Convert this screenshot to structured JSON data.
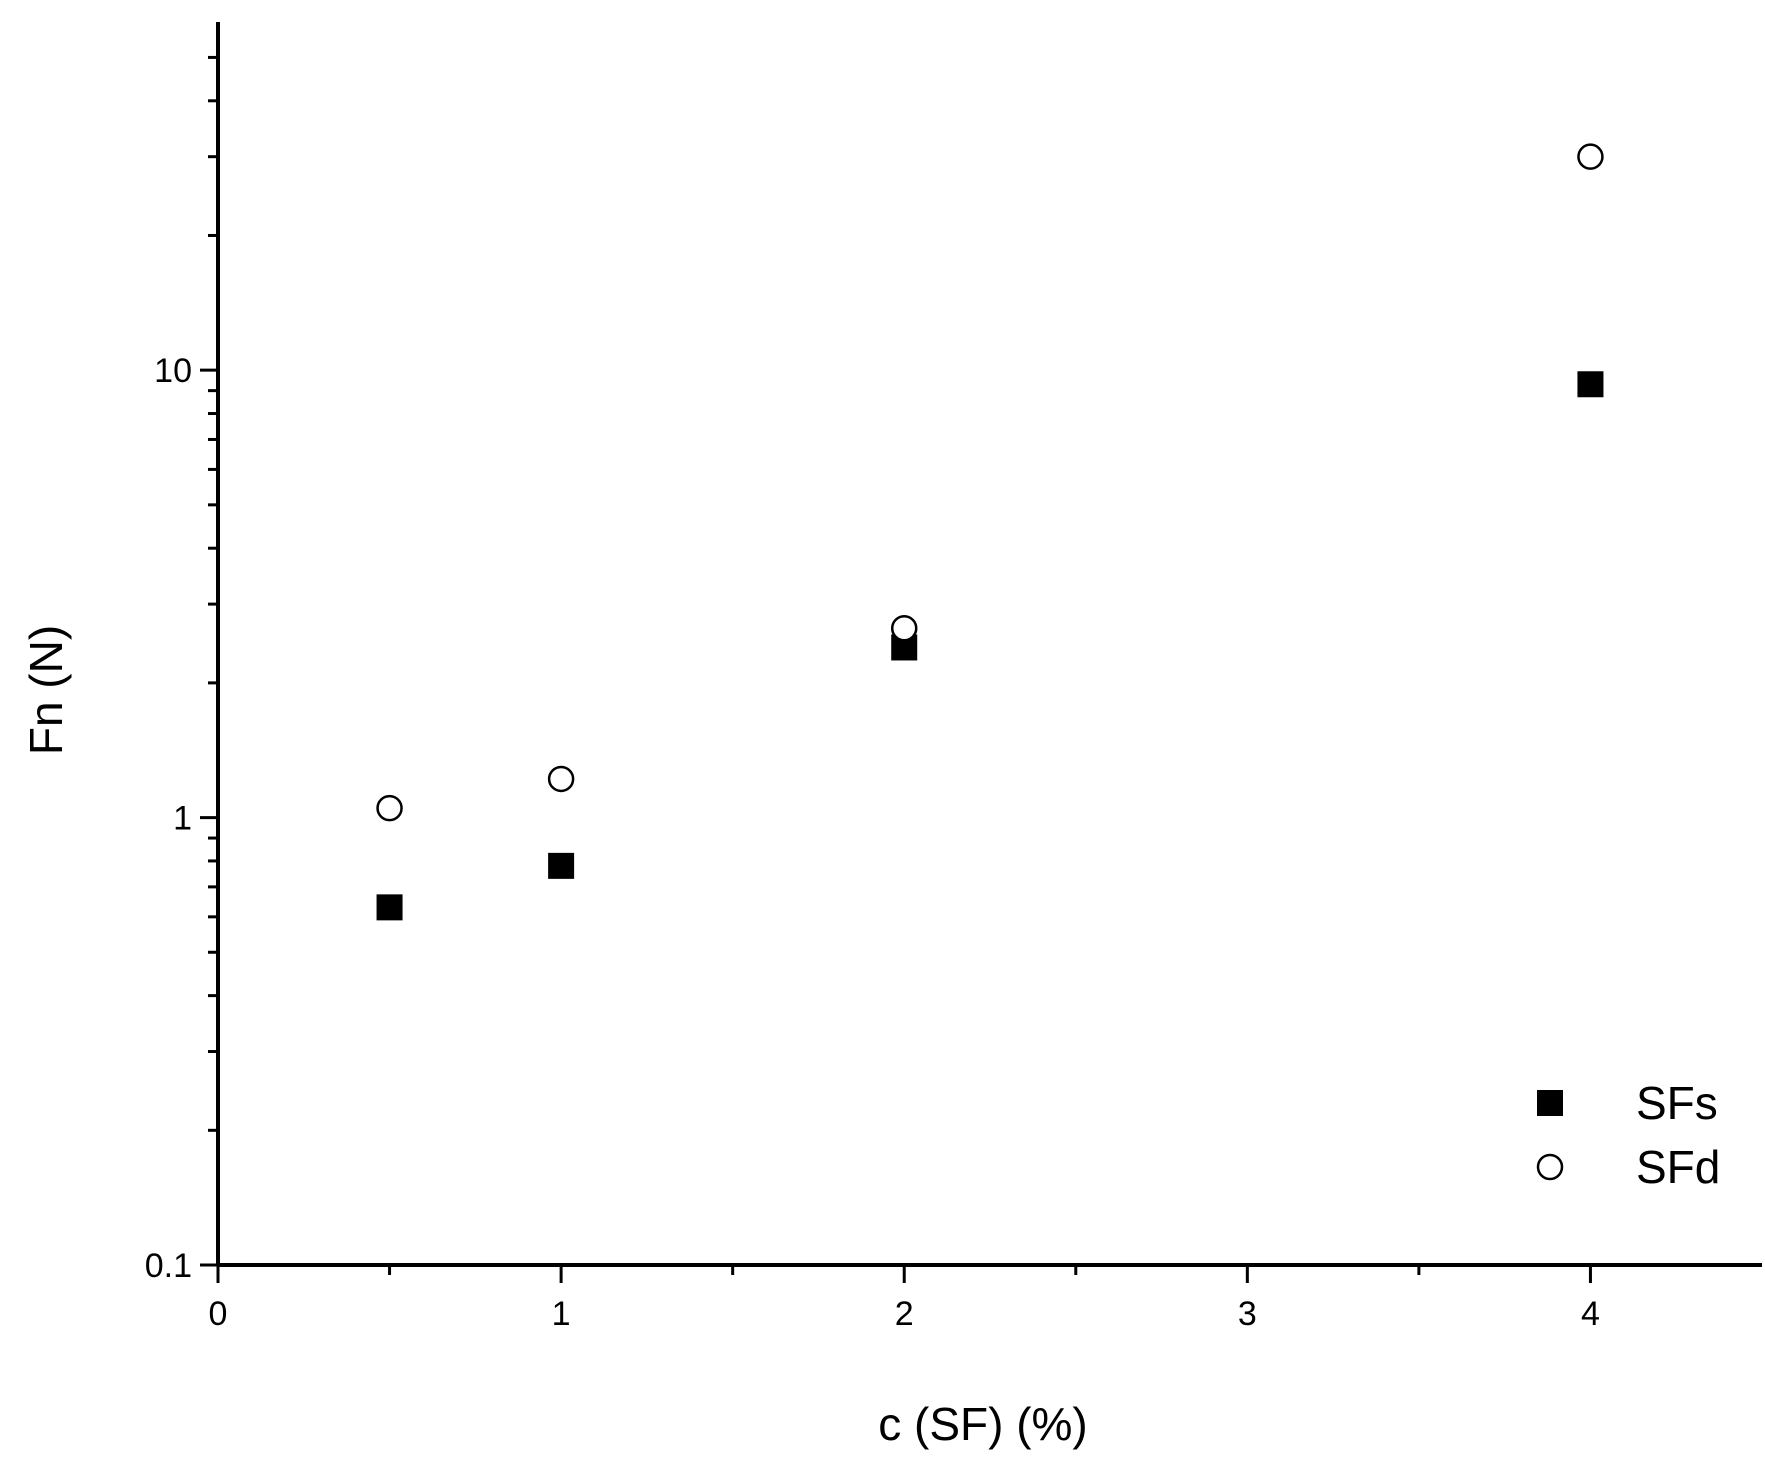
{
  "chart_data": {
    "type": "scatter",
    "title": "",
    "xlabel": "c (SF) (%)",
    "ylabel": "Fn (N)",
    "xlim": [
      0,
      4.5
    ],
    "ylim": [
      0.1,
      60
    ],
    "y_scale": "log",
    "x_major_ticks": [
      0,
      1,
      2,
      3,
      4
    ],
    "x_tick_labels": [
      "0",
      "1",
      "2",
      "3",
      "4"
    ],
    "x_minor_ticks": [
      0.5,
      1.5,
      2.5,
      3.5
    ],
    "y_major_ticks": [
      0.1,
      1,
      10
    ],
    "y_tick_labels": [
      "0.1",
      "1",
      "10"
    ],
    "grid": false,
    "legend_position": "bottom-right",
    "series": [
      {
        "name": "SFs",
        "marker": "filled-square",
        "color": "#000000",
        "x": [
          0.5,
          1,
          2,
          4
        ],
        "y": [
          0.63,
          0.78,
          2.4,
          9.3
        ]
      },
      {
        "name": "SFd",
        "marker": "open-circle",
        "color": "#000000",
        "x": [
          0.5,
          1,
          2,
          4
        ],
        "y": [
          1.05,
          1.22,
          2.65,
          30
        ]
      }
    ]
  }
}
